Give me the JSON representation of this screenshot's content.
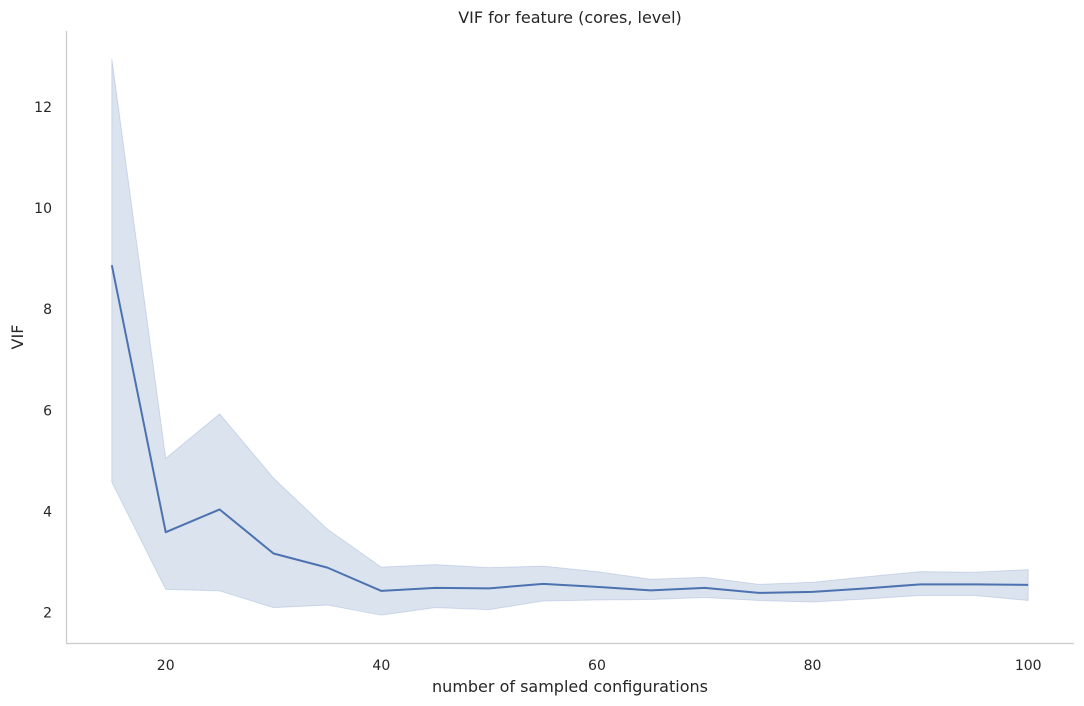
{
  "chart_data": {
    "type": "line",
    "title": "VIF for feature (cores, level)",
    "xlabel": "number of sampled configurations",
    "ylabel": "VIF",
    "xlim": [
      10.75,
      104.25
    ],
    "ylim": [
      1.4,
      13.5
    ],
    "xticks": [
      20,
      40,
      60,
      80,
      100
    ],
    "yticks": [
      2,
      4,
      6,
      8,
      10,
      12
    ],
    "grid": false,
    "legend": "none",
    "series": [
      {
        "x": [
          15,
          20,
          25,
          30,
          35,
          40,
          45,
          50,
          55,
          60,
          65,
          70,
          75,
          80,
          85,
          90,
          95,
          100
        ],
        "y": [
          8.87,
          3.59,
          4.04,
          3.17,
          2.89,
          2.43,
          2.49,
          2.48,
          2.57,
          2.51,
          2.44,
          2.49,
          2.39,
          2.41,
          2.48,
          2.56,
          2.56,
          2.55
        ],
        "ci_lower": [
          4.58,
          2.46,
          2.43,
          2.1,
          2.15,
          1.95,
          2.1,
          2.06,
          2.23,
          2.25,
          2.26,
          2.3,
          2.24,
          2.21,
          2.27,
          2.34,
          2.34,
          2.24
        ],
        "ci_upper": [
          12.95,
          5.05,
          5.93,
          4.66,
          3.65,
          2.9,
          2.95,
          2.89,
          2.92,
          2.81,
          2.66,
          2.7,
          2.56,
          2.6,
          2.71,
          2.81,
          2.8,
          2.85
        ],
        "color": "#4c72b0",
        "band_color": "#4c72b0"
      }
    ]
  }
}
